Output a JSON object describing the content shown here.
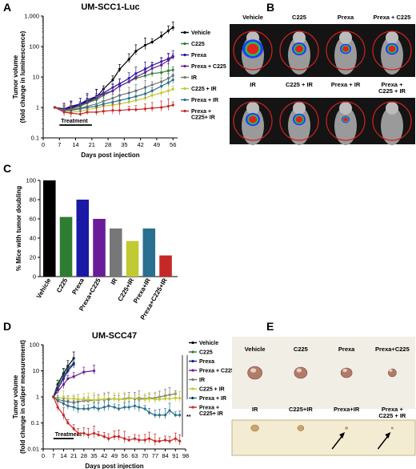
{
  "panels": {
    "a": "A",
    "b": "B",
    "c": "C",
    "d": "D",
    "e": "E"
  },
  "chart_data": [
    {
      "id": "A",
      "type": "line",
      "title": "UM-SCC1-Luc",
      "xlabel": "Days post injection",
      "ylabel": "Tumor volume (fold change in luminescence)",
      "yscale": "log",
      "ylim": [
        0.1,
        1000
      ],
      "xlim": [
        0,
        58
      ],
      "x_ticks": [
        0,
        7,
        14,
        21,
        28,
        35,
        42,
        49,
        56
      ],
      "y_ticks": [
        0.1,
        1,
        10,
        100,
        1000
      ],
      "y_tick_labels": [
        "0.1",
        "1",
        "10",
        "100",
        "1,000"
      ],
      "annotation": "Treatment",
      "treatment_range": [
        7,
        21
      ],
      "x": [
        5,
        9,
        12,
        16,
        19,
        23,
        26,
        30,
        33,
        37,
        40,
        44,
        47,
        51,
        54,
        56
      ],
      "series": [
        {
          "name": "Vehicle",
          "color": "#000000",
          "values": [
            1,
            0.9,
            1.0,
            1.3,
            1.6,
            2.2,
            4,
            8,
            18,
            38,
            70,
            110,
            140,
            220,
            330,
            420
          ]
        },
        {
          "name": "C225",
          "color": "#2e7d32",
          "values": [
            1,
            0.8,
            0.9,
            1.1,
            1.4,
            1.8,
            2.5,
            3.5,
            5,
            7,
            9,
            11,
            13,
            14,
            16,
            17
          ]
        },
        {
          "name": "Prexa",
          "color": "#1a1aa6",
          "values": [
            1,
            0.9,
            1.1,
            1.3,
            1.8,
            2.3,
            3,
            4.5,
            6,
            9,
            13,
            18,
            24,
            32,
            40,
            48
          ]
        },
        {
          "name": "Prexa + C225",
          "color": "#6a1b9a",
          "values": [
            1,
            0.85,
            0.95,
            1.2,
            1.5,
            2.0,
            2.8,
            3.5,
            5,
            7,
            10,
            14,
            19,
            25,
            35,
            45
          ]
        },
        {
          "name": "IR",
          "color": "#777777",
          "values": [
            1,
            0.8,
            0.85,
            0.95,
            1.1,
            1.3,
            1.6,
            2.0,
            2.5,
            3.0,
            3.5,
            4.5,
            5.5,
            7,
            9,
            11
          ]
        },
        {
          "name": "C225 + IR",
          "color": "#c0ca33",
          "values": [
            1,
            0.75,
            0.7,
            0.75,
            0.85,
            0.95,
            1.1,
            1.2,
            1.3,
            1.5,
            1.7,
            2.0,
            2.5,
            3.0,
            3.5,
            4
          ]
        },
        {
          "name": "Prexa + IR",
          "color": "#2a6f8f",
          "values": [
            1,
            0.8,
            0.8,
            0.9,
            1.0,
            1.1,
            1.3,
            1.5,
            1.7,
            2.0,
            2.3,
            2.8,
            3.5,
            5,
            6.5,
            8
          ]
        },
        {
          "name": "Prexa +\nC225+ IR",
          "color": "#c62828",
          "values": [
            1,
            0.7,
            0.65,
            0.6,
            0.7,
            0.7,
            0.75,
            0.8,
            0.8,
            0.85,
            0.85,
            0.9,
            0.95,
            1.0,
            1.1,
            1.2
          ]
        }
      ]
    },
    {
      "id": "B",
      "type": "image-grid",
      "row1": [
        "Vehicle",
        "C225",
        "Prexa",
        "Prexa + C225"
      ],
      "row2": [
        "IR",
        "C225 + IR",
        "Prexa + IR",
        "Prexa +\nC225 + IR"
      ]
    },
    {
      "id": "C",
      "type": "bar",
      "ylabel": "% Mice with tumor doubling",
      "ylim": [
        0,
        100
      ],
      "y_ticks": [
        0,
        20,
        40,
        60,
        80,
        100
      ],
      "categories": [
        "Vehicle",
        "C225",
        "Prexa",
        "Prexa+C225",
        "IR",
        "C225+IR",
        "Prexa+IR",
        "Prexa+C225+IR"
      ],
      "values": [
        100,
        62,
        80,
        60,
        50,
        37,
        50,
        22
      ],
      "colors": [
        "#000000",
        "#2e7d32",
        "#1a1aa6",
        "#6a1b9a",
        "#777777",
        "#c0ca33",
        "#2a6f8f",
        "#c62828"
      ]
    },
    {
      "id": "D",
      "type": "line",
      "title": "UM-SCC47",
      "xlabel": "Days post injection",
      "ylabel": "Tumor volume (fold change in caliper measurement)",
      "yscale": "log",
      "ylim": [
        0.01,
        100
      ],
      "xlim": [
        0,
        98
      ],
      "x_ticks": [
        0,
        7,
        14,
        21,
        28,
        35,
        42,
        49,
        56,
        63,
        70,
        77,
        84,
        91,
        98
      ],
      "y_ticks": [
        0.01,
        0.1,
        1,
        10,
        100
      ],
      "y_tick_labels": [
        "0.01",
        "0.1",
        "1",
        "10",
        "100"
      ],
      "annotation": "Treatment",
      "treatment_range": [
        7,
        21
      ],
      "significance": [
        "*",
        "**"
      ],
      "series": [
        {
          "name": "Vehicle",
          "color": "#000000",
          "x": [
            7,
            10,
            14,
            17,
            21
          ],
          "values": [
            1,
            3,
            8,
            15,
            30
          ]
        },
        {
          "name": "C225",
          "color": "#2e7d32",
          "x": [
            7,
            10,
            14,
            17,
            21
          ],
          "values": [
            1,
            2.5,
            6,
            12,
            20
          ]
        },
        {
          "name": "Prexa",
          "color": "#1a1aa6",
          "x": [
            7,
            10,
            14,
            17,
            21
          ],
          "values": [
            1,
            2,
            5,
            10,
            18
          ]
        },
        {
          "name": "Prexa + C225",
          "color": "#6a1b9a",
          "x": [
            7,
            10,
            14,
            17,
            21,
            28,
            35
          ],
          "values": [
            1,
            1.6,
            3,
            5,
            6,
            9,
            10
          ]
        },
        {
          "name": "IR",
          "color": "#777777",
          "x": [
            7,
            10,
            14,
            17,
            21,
            24,
            28,
            31,
            35,
            38,
            42,
            45,
            49,
            52,
            56,
            59,
            63,
            66,
            70,
            73,
            77,
            80,
            84,
            87,
            91
          ],
          "values": [
            1,
            0.8,
            0.7,
            0.65,
            0.6,
            0.65,
            0.7,
            0.7,
            0.75,
            0.75,
            0.8,
            0.8,
            0.85,
            0.8,
            0.85,
            0.9,
            0.85,
            0.9,
            0.85,
            0.9,
            0.9,
            1.0,
            1.1,
            1.2,
            1.3
          ]
        },
        {
          "name": "C225 + IR",
          "color": "#c0ca33",
          "x": [
            7,
            10,
            14,
            17,
            21,
            24,
            28,
            31,
            35,
            38,
            42,
            45,
            49,
            52,
            56,
            59,
            63,
            66,
            70,
            73,
            77,
            80,
            84,
            87,
            91,
            94
          ],
          "values": [
            1,
            0.9,
            0.9,
            0.85,
            0.85,
            0.8,
            0.8,
            0.8,
            0.75,
            0.8,
            0.8,
            0.85,
            0.85,
            0.8,
            0.8,
            0.85,
            0.85,
            0.8,
            0.8,
            0.85,
            0.8,
            0.8,
            0.85,
            0.85,
            0.9,
            0.9
          ]
        },
        {
          "name": "Prexa + IR",
          "color": "#2a6f8f",
          "x": [
            7,
            10,
            14,
            17,
            21,
            24,
            28,
            31,
            35,
            38,
            42,
            45,
            49,
            52,
            56,
            59,
            63,
            66,
            70,
            73,
            77,
            80,
            84,
            87,
            91,
            94
          ],
          "values": [
            1,
            0.7,
            0.55,
            0.45,
            0.4,
            0.35,
            0.35,
            0.35,
            0.4,
            0.35,
            0.4,
            0.45,
            0.4,
            0.35,
            0.4,
            0.4,
            0.45,
            0.4,
            0.35,
            0.25,
            0.2,
            0.2,
            0.2,
            0.3,
            0.2,
            0.2
          ]
        },
        {
          "name": "Prexa +\nC225+ IR",
          "color": "#c62828",
          "x": [
            7,
            10,
            14,
            17,
            21,
            24,
            28,
            31,
            35,
            38,
            42,
            45,
            49,
            52,
            56,
            59,
            63,
            66,
            70,
            73,
            77,
            80,
            84,
            87,
            91,
            94
          ],
          "values": [
            1,
            0.4,
            0.2,
            0.1,
            0.06,
            0.04,
            0.04,
            0.035,
            0.04,
            0.035,
            0.03,
            0.025,
            0.03,
            0.03,
            0.025,
            0.022,
            0.025,
            0.022,
            0.022,
            0.025,
            0.02,
            0.02,
            0.022,
            0.02,
            0.025,
            0.02
          ]
        }
      ]
    },
    {
      "id": "E",
      "type": "image-grid",
      "row1": [
        "Vehicle",
        "C225",
        "Prexa",
        "Prexa+C225"
      ],
      "row2": [
        "IR",
        "C225+IR",
        "Prexa+IR",
        "Prexa +\nC225 + IR"
      ]
    }
  ]
}
